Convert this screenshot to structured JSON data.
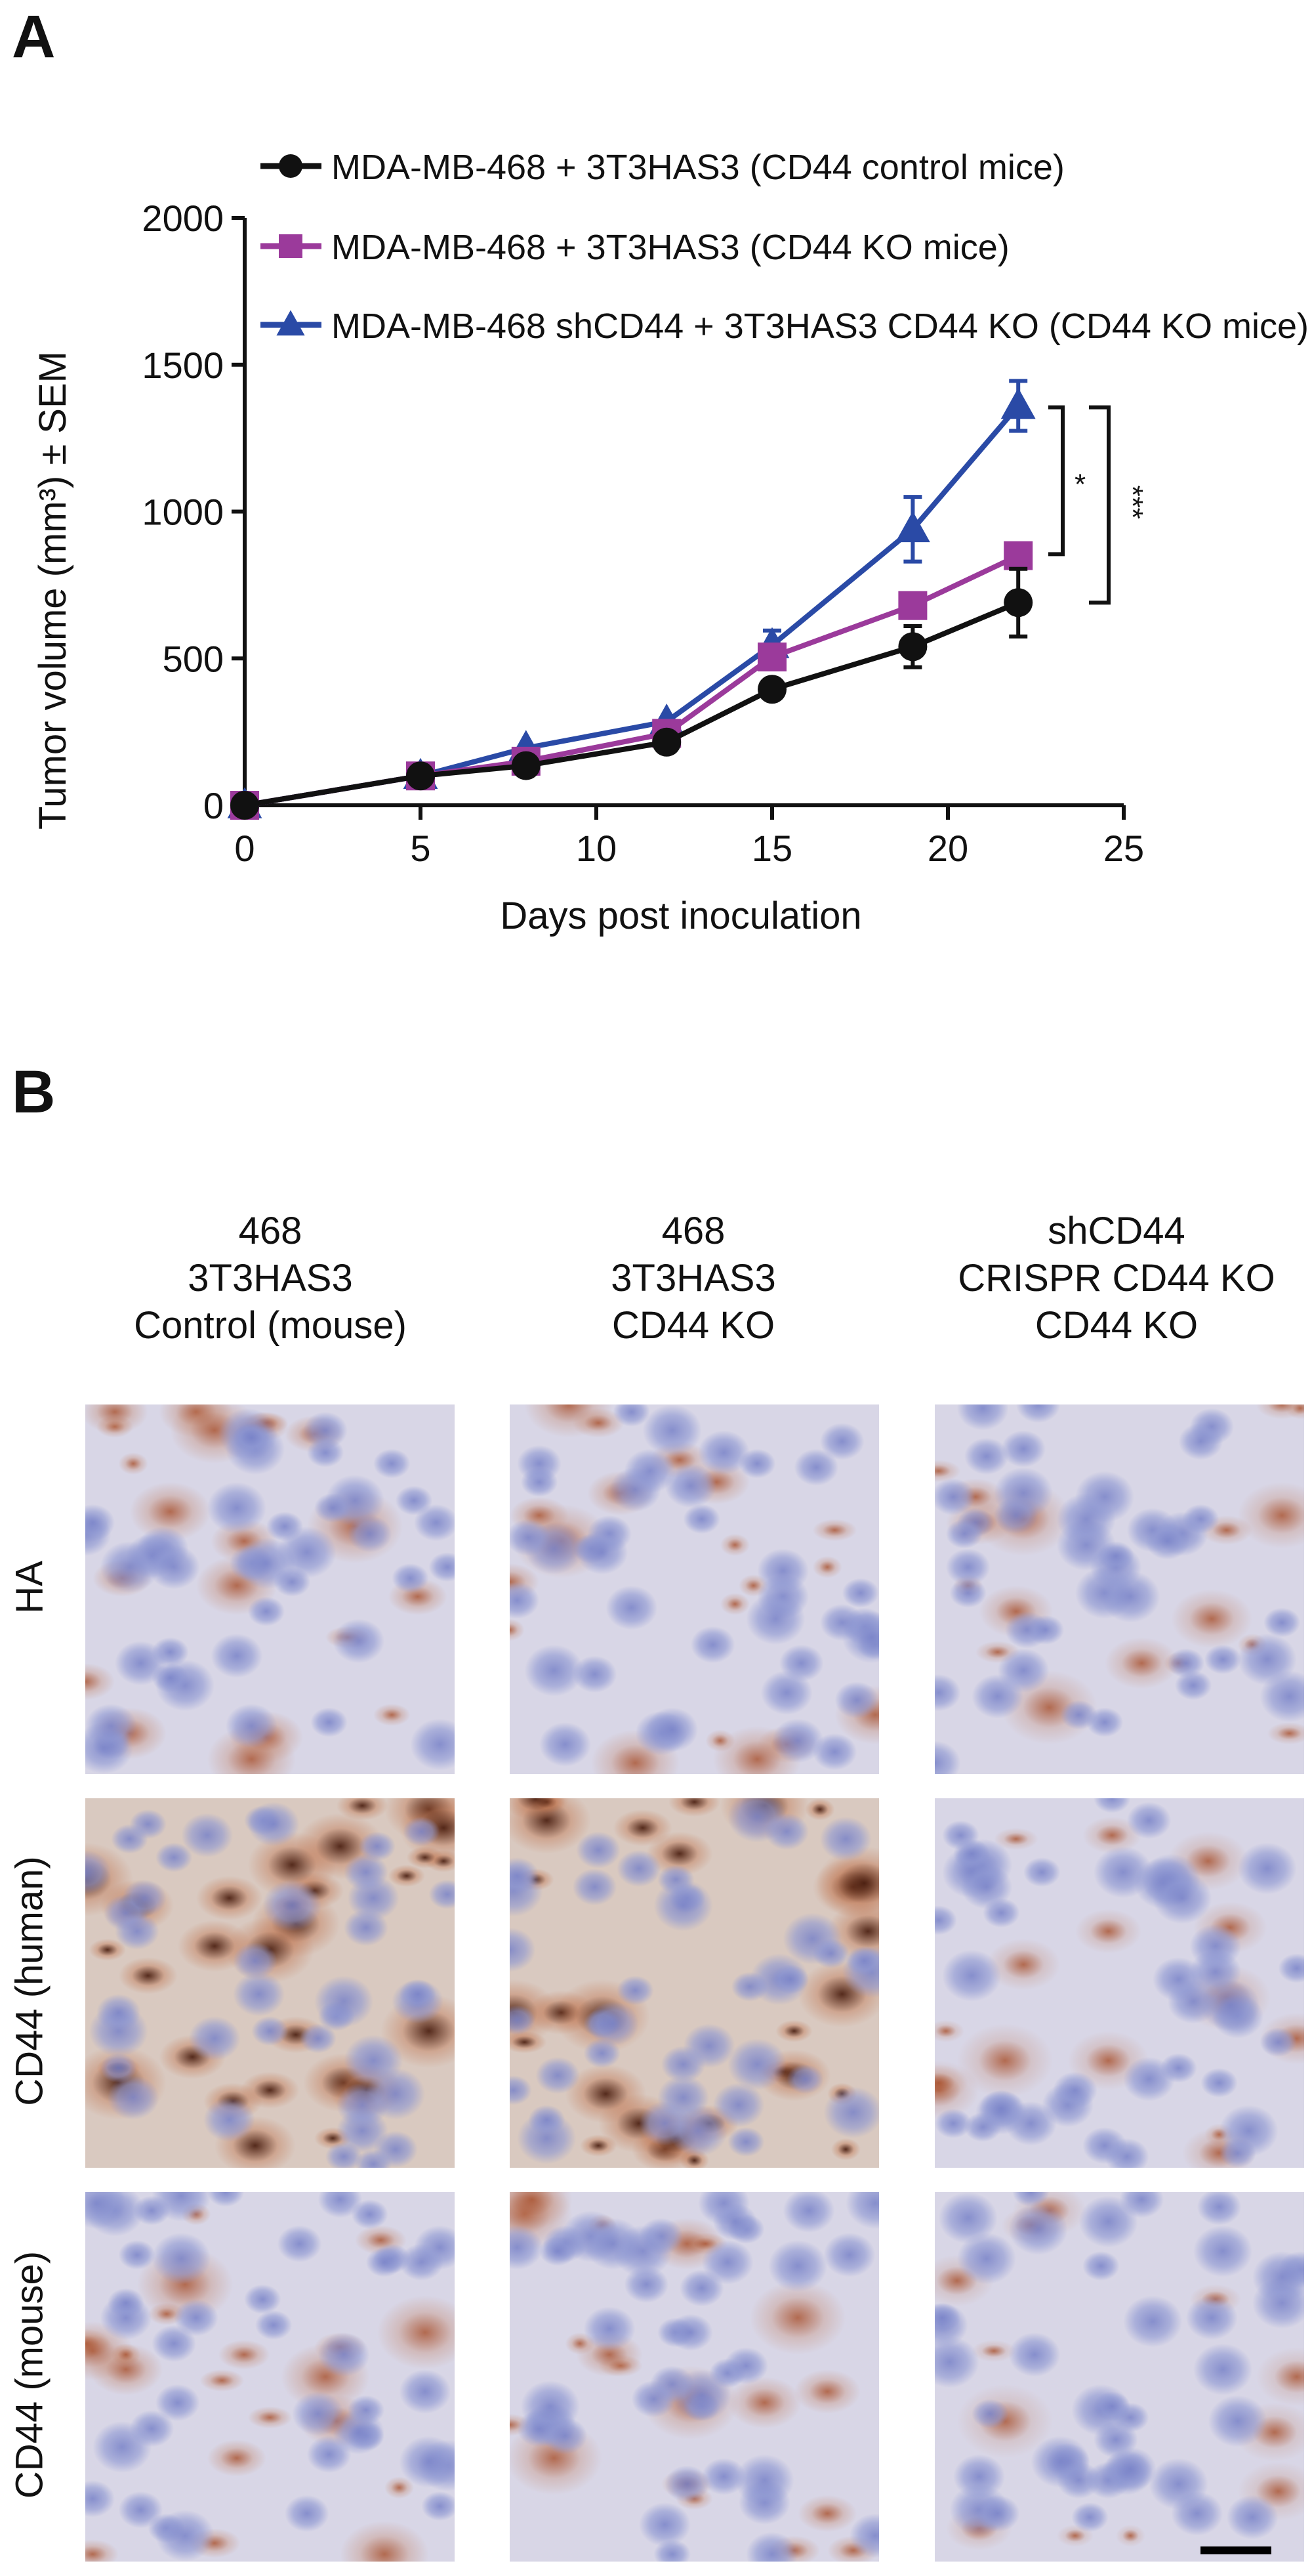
{
  "panels": {
    "a": {
      "label": "A"
    },
    "b": {
      "label": "B"
    }
  },
  "chart_data": {
    "type": "line",
    "title": "",
    "xlabel": "Days post inoculation",
    "ylabel": "Tumor volume (mm³) ± SEM",
    "xlim": [
      0,
      25
    ],
    "ylim": [
      0,
      2000
    ],
    "xticks": [
      0,
      5,
      10,
      15,
      20,
      25
    ],
    "yticks": [
      0,
      500,
      1000,
      1500,
      2000
    ],
    "grid": false,
    "legend_position": "top-left (inside)",
    "x": [
      0,
      5,
      8,
      12,
      15,
      19,
      22
    ],
    "series": [
      {
        "name": "MDA-MB-468 + 3T3HAS3 (CD44 control mice)",
        "color": "#111111",
        "marker": "circle",
        "values": [
          0,
          100,
          135,
          215,
          395,
          540,
          690
        ],
        "sem": [
          0,
          10,
          12,
          15,
          15,
          70,
          115
        ]
      },
      {
        "name": "MDA-MB-468 + 3T3HAS3 (CD44 KO mice)",
        "color": "#9b3a9b",
        "marker": "square",
        "values": [
          0,
          100,
          150,
          245,
          505,
          680,
          850
        ],
        "sem": [
          0,
          10,
          12,
          15,
          20,
          20,
          35
        ]
      },
      {
        "name": "MDA-MB-468 shCD44 + 3T3HAS3 CD44 KO (CD44 KO mice)",
        "color": "#2a4aa6",
        "marker": "triangle",
        "values": [
          0,
          100,
          195,
          285,
          545,
          940,
          1360
        ],
        "sem": [
          0,
          10,
          10,
          12,
          50,
          110,
          85
        ]
      }
    ],
    "annotations": [
      {
        "text": "*",
        "type": "significance-bracket",
        "between": [
          "CD44 KO mice",
          "shCD44 CD44 KO mice"
        ],
        "at_day": 22
      },
      {
        "text": "***",
        "type": "significance-bracket",
        "between": [
          "CD44 control mice",
          "shCD44 CD44 KO mice"
        ],
        "at_day": 22
      }
    ]
  },
  "panel_b": {
    "columns": [
      {
        "lines": [
          "468",
          "3T3HAS3",
          "Control (mouse)"
        ]
      },
      {
        "lines": [
          "468",
          "3T3HAS3",
          "CD44 KO"
        ]
      },
      {
        "lines": [
          "shCD44",
          "CRISPR CD44 KO",
          "CD44 KO"
        ]
      }
    ],
    "rows": [
      {
        "label": "HA"
      },
      {
        "label": "CD44 (human)"
      },
      {
        "label": "CD44 (mouse)"
      }
    ],
    "scale_bar": "present (bottom-right tile)"
  }
}
